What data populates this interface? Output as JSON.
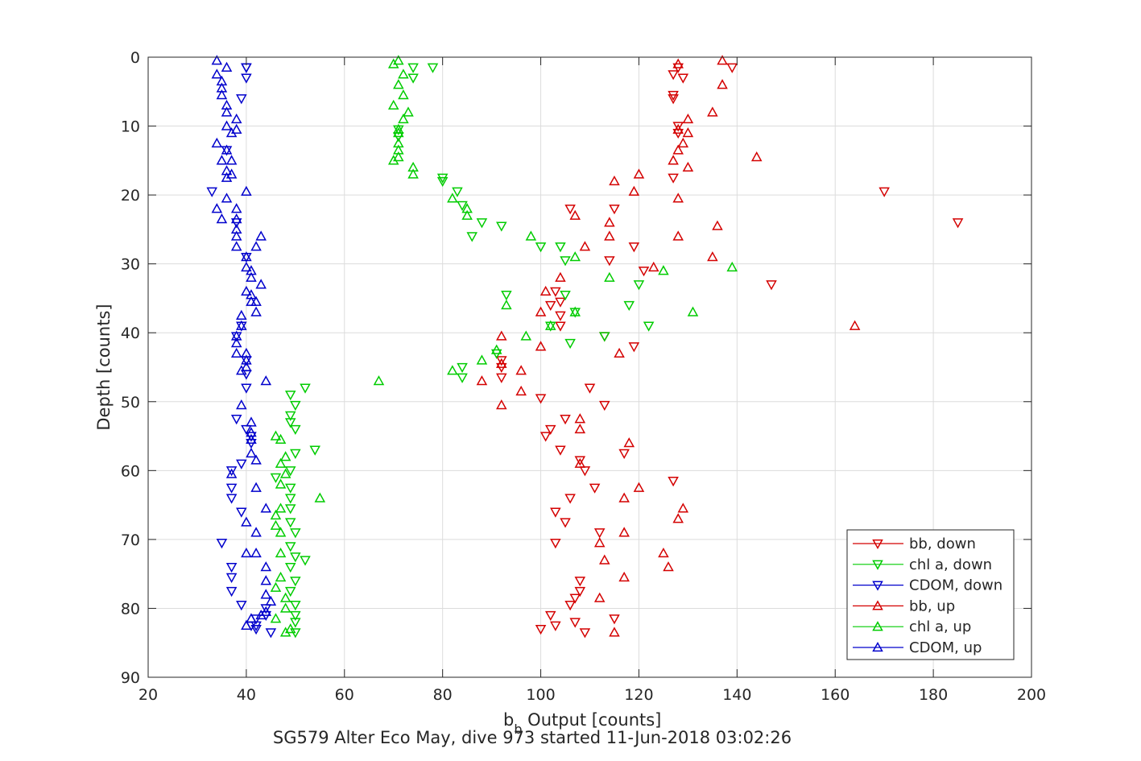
{
  "chart_data": {
    "type": "scatter",
    "title": "SG579 Alter Eco May, dive 973 started 11-Jun-2018 03:02:26",
    "xlabel_main": "b",
    "xlabel_sub": "b",
    "xlabel_rest": " Output [counts]",
    "ylabel": "Depth [counts]",
    "xlim": [
      20,
      200
    ],
    "ylim": [
      0,
      90
    ],
    "y_reversed": true,
    "grid": true,
    "legend_position": "bottom-right",
    "x_ticks": [
      20,
      40,
      60,
      80,
      100,
      120,
      140,
      160,
      180,
      200
    ],
    "y_ticks": [
      0,
      10,
      20,
      30,
      40,
      50,
      60,
      70,
      80,
      90
    ],
    "series": [
      {
        "name": "bb, down",
        "color": "#d40000",
        "marker": "triangle-down",
        "points": [
          [
            128,
            1.5
          ],
          [
            139,
            1.5
          ],
          [
            127,
            2.5
          ],
          [
            129,
            3
          ],
          [
            127,
            5.5
          ],
          [
            127,
            6
          ],
          [
            128,
            10
          ],
          [
            128,
            11
          ],
          [
            127,
            17.5
          ],
          [
            170,
            19.5
          ],
          [
            106,
            22
          ],
          [
            115,
            22
          ],
          [
            185,
            24
          ],
          [
            119,
            27.5
          ],
          [
            114,
            29.5
          ],
          [
            121,
            31
          ],
          [
            147,
            33
          ],
          [
            103,
            34
          ],
          [
            104,
            35.5
          ],
          [
            102,
            36
          ],
          [
            104,
            37.5
          ],
          [
            104,
            39
          ],
          [
            113,
            40.5
          ],
          [
            119,
            42
          ],
          [
            92,
            44
          ],
          [
            92,
            45
          ],
          [
            92,
            46.5
          ],
          [
            110,
            48
          ],
          [
            100,
            49.5
          ],
          [
            113,
            50.5
          ],
          [
            105,
            52.5
          ],
          [
            102,
            54
          ],
          [
            101,
            55
          ],
          [
            104,
            57
          ],
          [
            117,
            57.5
          ],
          [
            108,
            58.5
          ],
          [
            109,
            60
          ],
          [
            111,
            62.5
          ],
          [
            127,
            61.5
          ],
          [
            106,
            64
          ],
          [
            103,
            66
          ],
          [
            105,
            67.5
          ],
          [
            112,
            69
          ],
          [
            103,
            70.5
          ],
          [
            108,
            76
          ],
          [
            108,
            77.5
          ],
          [
            107,
            78.5
          ],
          [
            106,
            79.5
          ],
          [
            102,
            81
          ],
          [
            115,
            81.5
          ],
          [
            103,
            82.5
          ],
          [
            100,
            83
          ],
          [
            107,
            82
          ],
          [
            109,
            83.5
          ]
        ]
      },
      {
        "name": "chl a, down",
        "color": "#00cc00",
        "marker": "triangle-down",
        "points": [
          [
            74,
            1.5
          ],
          [
            78,
            1.5
          ],
          [
            74,
            3
          ],
          [
            71,
            10.5
          ],
          [
            71,
            11.5
          ],
          [
            80,
            17.5
          ],
          [
            80,
            18
          ],
          [
            83,
            19.5
          ],
          [
            84,
            21.5
          ],
          [
            88,
            24
          ],
          [
            92,
            24.5
          ],
          [
            86,
            26
          ],
          [
            100,
            27.5
          ],
          [
            104,
            27.5
          ],
          [
            105,
            29.5
          ],
          [
            120,
            33
          ],
          [
            105,
            34.5
          ],
          [
            93,
            34.5
          ],
          [
            118,
            36
          ],
          [
            107,
            37
          ],
          [
            122,
            39
          ],
          [
            102,
            39
          ],
          [
            113,
            40.5
          ],
          [
            106,
            41.5
          ],
          [
            91,
            43
          ],
          [
            84,
            45
          ],
          [
            84,
            46.5
          ],
          [
            52,
            48
          ],
          [
            49,
            49
          ],
          [
            50,
            50.5
          ],
          [
            49,
            52
          ],
          [
            49,
            53
          ],
          [
            50,
            54
          ],
          [
            54,
            57
          ],
          [
            50,
            57.5
          ],
          [
            49,
            60
          ],
          [
            46,
            61
          ],
          [
            49,
            62.5
          ],
          [
            49,
            64
          ],
          [
            49,
            65.5
          ],
          [
            49,
            67.5
          ],
          [
            50,
            69
          ],
          [
            49,
            71
          ],
          [
            50,
            72.5
          ],
          [
            52,
            73
          ],
          [
            49,
            74
          ],
          [
            50,
            76
          ],
          [
            49,
            77.5
          ],
          [
            50,
            79.5
          ],
          [
            50,
            81
          ],
          [
            50,
            82
          ],
          [
            50,
            83.5
          ]
        ]
      },
      {
        "name": "CDOM, down",
        "color": "#0000cc",
        "marker": "triangle-down",
        "points": [
          [
            40,
            1.5
          ],
          [
            40,
            1.5
          ],
          [
            40,
            3
          ],
          [
            39,
            6
          ],
          [
            36,
            13.5
          ],
          [
            33,
            19.5
          ],
          [
            38,
            24
          ],
          [
            40,
            29
          ],
          [
            39,
            39
          ],
          [
            38,
            40.5
          ],
          [
            40,
            44
          ],
          [
            40,
            46
          ],
          [
            40,
            48
          ],
          [
            38,
            52.5
          ],
          [
            40,
            54
          ],
          [
            41,
            55
          ],
          [
            41,
            56
          ],
          [
            39,
            59
          ],
          [
            37,
            60
          ],
          [
            37,
            62.5
          ],
          [
            37,
            64
          ],
          [
            39,
            66
          ],
          [
            35,
            70.5
          ],
          [
            37,
            74
          ],
          [
            37,
            75.5
          ],
          [
            37,
            77.5
          ],
          [
            39,
            79.5
          ],
          [
            42,
            81.5
          ],
          [
            41,
            82.5
          ],
          [
            42,
            83
          ],
          [
            44,
            81
          ],
          [
            42,
            82.5
          ],
          [
            45,
            83.5
          ],
          [
            44,
            80
          ]
        ]
      },
      {
        "name": "bb, up",
        "color": "#d40000",
        "marker": "triangle-up",
        "points": [
          [
            137,
            0.5
          ],
          [
            128,
            1
          ],
          [
            137,
            4
          ],
          [
            135,
            8
          ],
          [
            130,
            9
          ],
          [
            128,
            10.5
          ],
          [
            130,
            11
          ],
          [
            129,
            12.5
          ],
          [
            128,
            13.5
          ],
          [
            127,
            15
          ],
          [
            144,
            14.5
          ],
          [
            130,
            16
          ],
          [
            120,
            17
          ],
          [
            115,
            18
          ],
          [
            119,
            19.5
          ],
          [
            128,
            20.5
          ],
          [
            107,
            23
          ],
          [
            114,
            24
          ],
          [
            136,
            24.5
          ],
          [
            114,
            26
          ],
          [
            128,
            26
          ],
          [
            109,
            27.5
          ],
          [
            135,
            29
          ],
          [
            123,
            30.5
          ],
          [
            104,
            32
          ],
          [
            101,
            34
          ],
          [
            100,
            37
          ],
          [
            164,
            39
          ],
          [
            92,
            40.5
          ],
          [
            100,
            42
          ],
          [
            116,
            43
          ],
          [
            92,
            44.5
          ],
          [
            96,
            45.5
          ],
          [
            88,
            47
          ],
          [
            96,
            48.5
          ],
          [
            92,
            50.5
          ],
          [
            108,
            52.5
          ],
          [
            108,
            54
          ],
          [
            118,
            56
          ],
          [
            108,
            59
          ],
          [
            120,
            62.5
          ],
          [
            117,
            64
          ],
          [
            129,
            65.5
          ],
          [
            128,
            67
          ],
          [
            117,
            69
          ],
          [
            112,
            70.5
          ],
          [
            125,
            72
          ],
          [
            113,
            73
          ],
          [
            126,
            74
          ],
          [
            117,
            75.5
          ],
          [
            112,
            78.5
          ],
          [
            115,
            83.5
          ]
        ]
      },
      {
        "name": "chl a, up",
        "color": "#00cc00",
        "marker": "triangle-up",
        "points": [
          [
            71,
            0.5
          ],
          [
            70,
            1
          ],
          [
            72,
            2.5
          ],
          [
            71,
            4
          ],
          [
            72,
            5.5
          ],
          [
            70,
            7
          ],
          [
            73,
            8
          ],
          [
            72,
            9
          ],
          [
            71,
            10.5
          ],
          [
            71,
            11
          ],
          [
            71,
            12.5
          ],
          [
            71,
            13.5
          ],
          [
            70,
            15
          ],
          [
            71,
            14.5
          ],
          [
            74,
            16
          ],
          [
            74,
            17
          ],
          [
            82,
            20.5
          ],
          [
            85,
            22
          ],
          [
            85,
            23
          ],
          [
            98,
            26
          ],
          [
            107,
            29
          ],
          [
            125,
            31
          ],
          [
            139,
            30.5
          ],
          [
            114,
            32
          ],
          [
            93,
            36
          ],
          [
            107,
            37
          ],
          [
            131,
            37
          ],
          [
            102,
            39
          ],
          [
            97,
            40.5
          ],
          [
            91,
            42.5
          ],
          [
            88,
            44
          ],
          [
            82,
            45.5
          ],
          [
            67,
            47
          ],
          [
            46,
            55
          ],
          [
            47,
            55.5
          ],
          [
            48,
            58
          ],
          [
            47,
            59
          ],
          [
            48,
            60.5
          ],
          [
            47,
            62
          ],
          [
            55,
            64
          ],
          [
            47,
            65.5
          ],
          [
            46,
            66.5
          ],
          [
            46,
            68
          ],
          [
            47,
            69
          ],
          [
            47,
            72
          ],
          [
            47,
            75.5
          ],
          [
            46,
            77
          ],
          [
            48,
            78.5
          ],
          [
            48,
            80
          ],
          [
            46,
            81.5
          ],
          [
            48,
            83.5
          ],
          [
            49,
            83
          ]
        ]
      },
      {
        "name": "CDOM, up",
        "color": "#0000cc",
        "marker": "triangle-up",
        "points": [
          [
            34,
            0.5
          ],
          [
            36,
            1.5
          ],
          [
            34,
            2.5
          ],
          [
            35,
            3.5
          ],
          [
            35,
            4.5
          ],
          [
            35,
            5.5
          ],
          [
            36,
            7
          ],
          [
            36,
            8
          ],
          [
            38,
            9
          ],
          [
            36,
            10
          ],
          [
            38,
            10.5
          ],
          [
            37,
            11
          ],
          [
            34,
            12.5
          ],
          [
            36,
            13.5
          ],
          [
            35,
            15
          ],
          [
            37,
            15
          ],
          [
            36,
            16.5
          ],
          [
            37,
            17
          ],
          [
            36,
            17.5
          ],
          [
            40,
            19.5
          ],
          [
            36,
            20.5
          ],
          [
            38,
            22
          ],
          [
            34,
            22
          ],
          [
            35,
            23.5
          ],
          [
            38,
            23.5
          ],
          [
            38,
            25
          ],
          [
            43,
            26
          ],
          [
            38,
            26
          ],
          [
            38,
            27.5
          ],
          [
            42,
            27.5
          ],
          [
            40,
            29
          ],
          [
            40,
            30.5
          ],
          [
            41,
            31
          ],
          [
            41,
            32
          ],
          [
            43,
            33
          ],
          [
            40,
            34
          ],
          [
            41,
            34.5
          ],
          [
            41,
            35.5
          ],
          [
            42,
            35.5
          ],
          [
            42,
            37
          ],
          [
            39,
            37.5
          ],
          [
            39,
            39
          ],
          [
            38,
            40.5
          ],
          [
            38,
            41.5
          ],
          [
            38,
            43
          ],
          [
            40,
            43
          ],
          [
            40,
            44
          ],
          [
            40,
            45
          ],
          [
            39,
            45.5
          ],
          [
            44,
            47
          ],
          [
            39,
            50.5
          ],
          [
            41,
            53
          ],
          [
            41,
            54.5
          ],
          [
            41,
            55.5
          ],
          [
            41,
            57.5
          ],
          [
            42,
            58.5
          ],
          [
            37,
            60.5
          ],
          [
            42,
            62.5
          ],
          [
            44,
            65.5
          ],
          [
            40,
            67.5
          ],
          [
            42,
            69
          ],
          [
            40,
            72
          ],
          [
            42,
            72
          ],
          [
            44,
            74
          ],
          [
            44,
            76
          ],
          [
            44,
            78
          ],
          [
            45,
            79
          ],
          [
            43,
            81
          ],
          [
            41,
            81.5
          ],
          [
            44,
            80.5
          ],
          [
            40,
            82.5
          ]
        ]
      }
    ]
  }
}
